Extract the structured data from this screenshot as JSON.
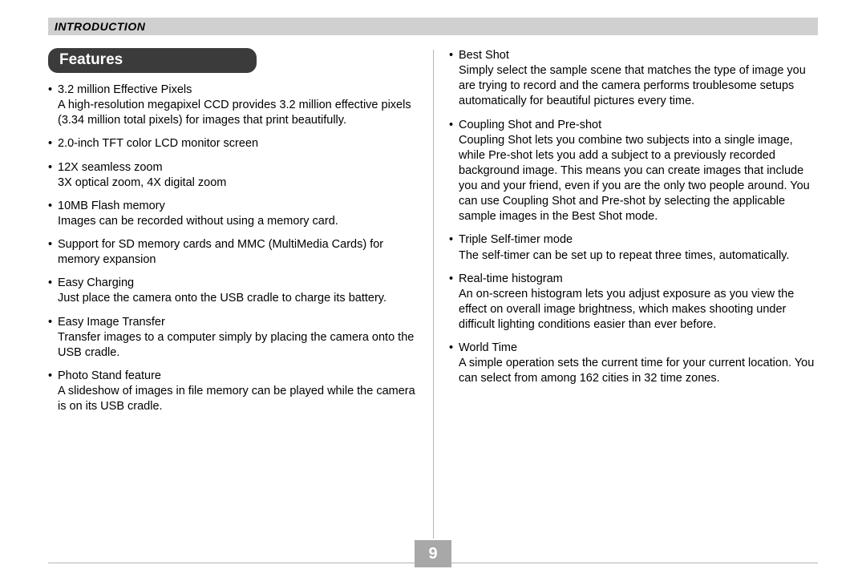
{
  "header": {
    "title": "INTRODUCTION"
  },
  "section": {
    "heading": "Features"
  },
  "page_number": "9",
  "colors": {
    "header_bg": "#d0d0d0",
    "pill_bg": "#3b3b3b",
    "pill_text": "#ffffff",
    "divider": "#b5b5b5",
    "page_box_bg": "#a8a8a8",
    "page_box_text": "#ffffff",
    "body_text": "#000000"
  },
  "left_features": [
    {
      "title": "3.2 million Effective Pixels",
      "desc": "A high-resolution megapixel CCD provides 3.2 million effective pixels (3.34 million total pixels) for images that print beautifully."
    },
    {
      "title": "2.0-inch TFT color LCD monitor screen",
      "desc": ""
    },
    {
      "title": "12X seamless zoom",
      "desc": "3X optical zoom, 4X digital zoom"
    },
    {
      "title": "10MB Flash memory",
      "desc": "Images can be recorded without using a memory card."
    },
    {
      "title": "Support for SD memory cards and MMC (MultiMedia Cards) for memory expansion",
      "desc": ""
    },
    {
      "title": "Easy Charging",
      "desc": "Just place the camera onto the USB cradle to charge its battery."
    },
    {
      "title": "Easy Image Transfer",
      "desc": "Transfer images to a computer simply by placing the camera onto the USB cradle."
    },
    {
      "title": "Photo Stand feature",
      "desc": "A slideshow of images in file memory can be played while the camera is on its USB cradle."
    }
  ],
  "right_features": [
    {
      "title": "Best Shot",
      "desc": "Simply select the sample scene that matches the type of image you are trying to record and the camera performs troublesome setups automatically for beautiful pictures every time."
    },
    {
      "title": "Coupling Shot and Pre-shot",
      "desc": "Coupling Shot lets you combine two subjects into a single image, while Pre-shot lets you add a subject to a previously recorded background image. This means you can create images that include you and your friend, even if you are the only two people around. You can use Coupling Shot and Pre-shot by selecting the applicable sample images in the Best Shot mode."
    },
    {
      "title": "Triple Self-timer mode",
      "desc": "The self-timer can be set up to repeat three times, automatically."
    },
    {
      "title": "Real-time histogram",
      "desc": "An on-screen histogram lets you adjust exposure as you view the effect on overall image brightness, which makes shooting under difficult lighting conditions easier than ever before."
    },
    {
      "title": "World Time",
      "desc": "A simple operation sets the current time for your current location. You can select from among 162 cities in 32 time zones."
    }
  ]
}
